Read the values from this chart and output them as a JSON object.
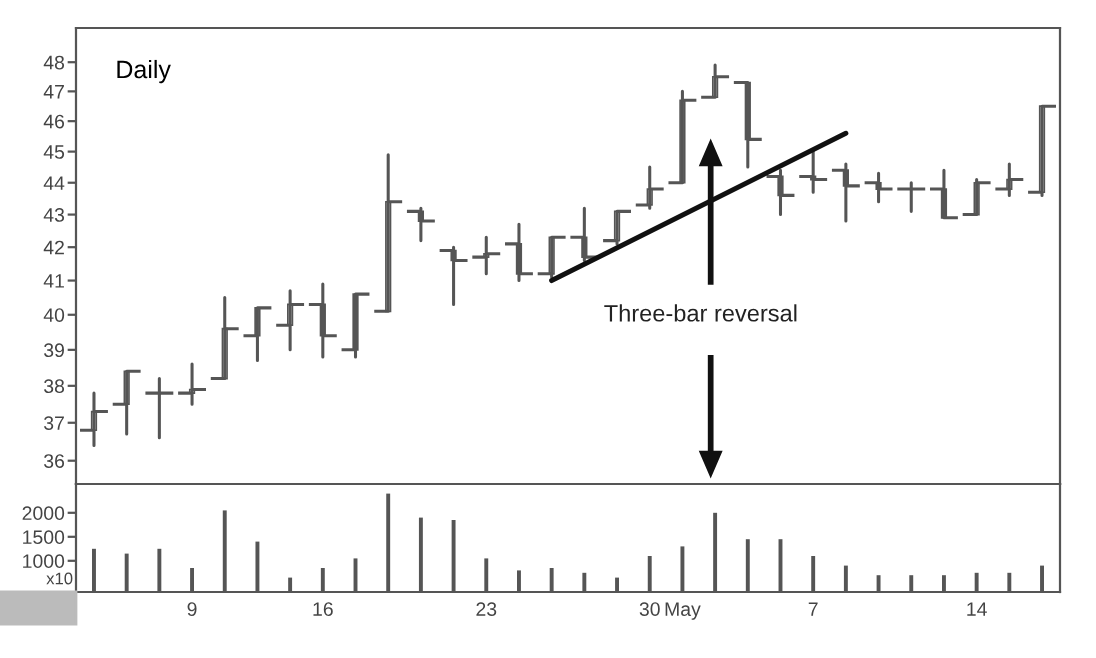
{
  "chart_data": [
    {
      "type": "candlestick",
      "title": "Daily",
      "log": "y",
      "color": "#555555",
      "categories": [
        null,
        null,
        null,
        null,
        null,
        null,
        null,
        null,
        null,
        null,
        null,
        null,
        null,
        null,
        null,
        null,
        null,
        null,
        null,
        null,
        null,
        null,
        null,
        null,
        null,
        null,
        null,
        null,
        null,
        null
      ],
      "ohlc": [
        [
          36.8,
          37.8,
          36.4,
          37.3
        ],
        [
          37.5,
          38.4,
          36.7,
          38.4
        ],
        [
          37.8,
          38.2,
          36.6,
          37.8
        ],
        [
          37.8,
          38.6,
          37.5,
          37.9
        ],
        [
          38.2,
          40.5,
          38.2,
          39.6
        ],
        [
          39.4,
          40.2,
          38.7,
          40.2
        ],
        [
          39.7,
          40.7,
          39.0,
          40.3
        ],
        [
          40.3,
          40.9,
          38.8,
          39.4
        ],
        [
          39.0,
          40.6,
          38.8,
          40.6
        ],
        [
          40.1,
          44.9,
          40.1,
          43.4
        ],
        [
          43.1,
          43.2,
          42.2,
          42.8
        ],
        [
          41.9,
          42.0,
          40.3,
          41.6
        ],
        [
          41.7,
          42.3,
          41.2,
          41.8
        ],
        [
          42.1,
          42.7,
          41.0,
          41.2
        ],
        [
          41.2,
          42.3,
          41.1,
          42.3
        ],
        [
          42.3,
          43.2,
          41.6,
          41.7
        ],
        [
          42.2,
          43.1,
          42.1,
          43.1
        ],
        [
          43.3,
          44.5,
          43.2,
          43.8
        ],
        [
          44.0,
          47.0,
          44.0,
          46.7
        ],
        [
          46.8,
          47.9,
          46.8,
          47.5
        ],
        [
          47.3,
          47.3,
          44.5,
          45.4
        ],
        [
          44.2,
          44.4,
          43.0,
          43.6
        ],
        [
          44.2,
          45.0,
          43.7,
          44.1
        ],
        [
          44.4,
          44.6,
          42.8,
          43.9
        ],
        [
          44.0,
          44.3,
          43.4,
          43.8
        ],
        [
          43.8,
          44.0,
          43.1,
          43.8
        ],
        [
          43.8,
          44.4,
          42.9,
          42.9
        ],
        [
          43.0,
          44.1,
          43.0,
          44.0
        ],
        [
          43.8,
          44.6,
          43.6,
          44.1
        ],
        [
          43.7,
          46.5,
          43.6,
          46.5
        ]
      ],
      "series": [
        {
          "type": "line",
          "values": [
            null,
            null,
            null,
            null,
            null,
            null,
            null,
            null,
            null,
            null,
            null,
            null,
            null,
            null,
            41.0,
            null,
            null,
            null,
            null,
            null,
            null,
            null,
            null,
            45.6,
            null,
            null,
            null,
            null,
            null,
            null
          ],
          "color": "#111111"
        }
      ],
      "ylim": [
        35.4,
        49.2
      ],
      "yticks": [
        36,
        37,
        38,
        39,
        40,
        41,
        42,
        43,
        44,
        45,
        46,
        47,
        48
      ],
      "annotations": [
        "Three-bar reversal"
      ]
    },
    {
      "type": "bar",
      "color": "#555555",
      "categories": [
        null,
        null,
        null,
        "9",
        null,
        null,
        null,
        "16",
        null,
        null,
        null,
        null,
        "23",
        null,
        null,
        null,
        null,
        "30",
        "May",
        null,
        null,
        null,
        "7",
        null,
        null,
        null,
        null,
        "14",
        null,
        null
      ],
      "values": [
        1250,
        1150,
        1250,
        850,
        2050,
        1400,
        650,
        850,
        1050,
        2400,
        1900,
        1850,
        1050,
        800,
        850,
        750,
        650,
        1100,
        1300,
        2000,
        1450,
        1450,
        1100,
        900,
        700,
        700,
        700,
        750,
        750,
        900
      ],
      "ylim": [
        350,
        2600
      ],
      "yticks": [
        1000,
        1500,
        2000
      ],
      "annotations": [
        "x10"
      ]
    }
  ]
}
